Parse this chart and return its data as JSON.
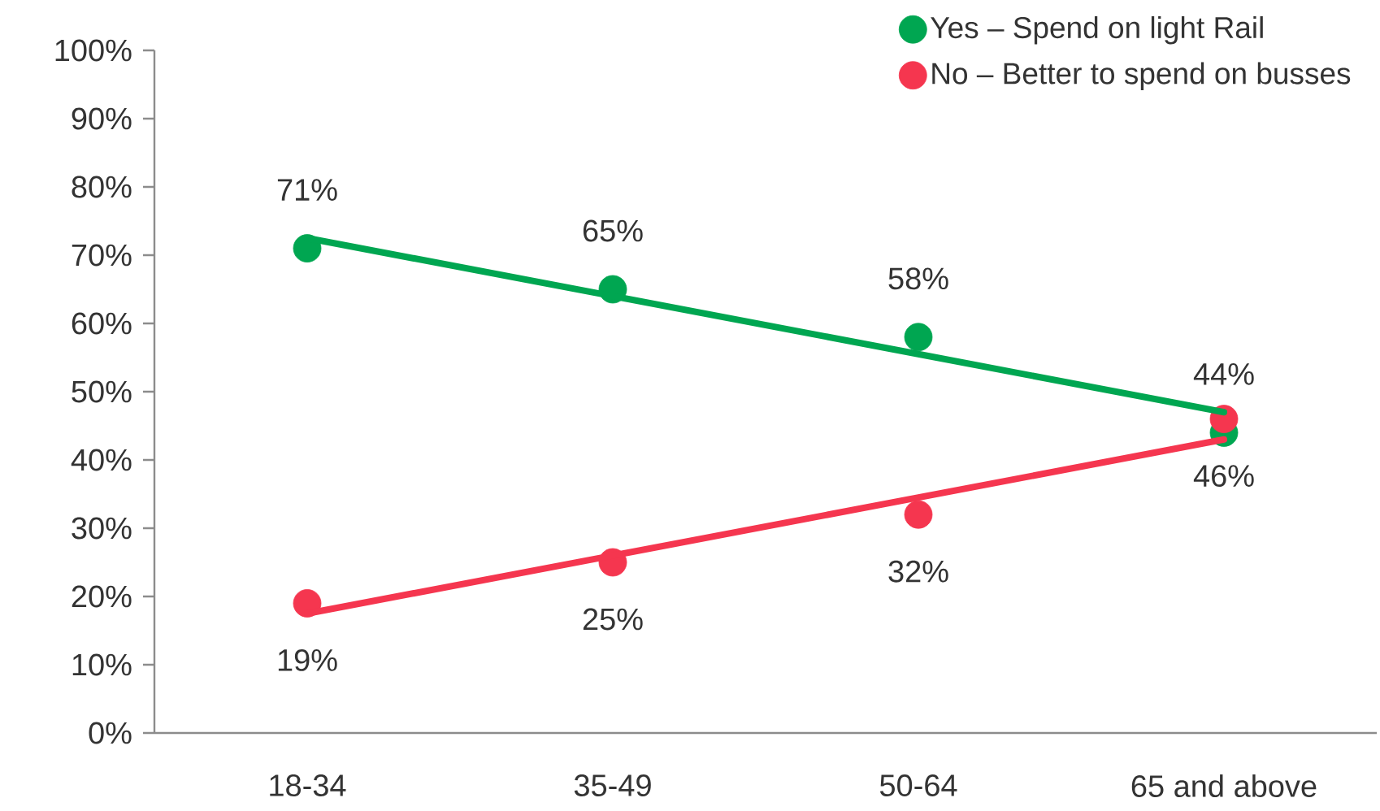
{
  "chart_data": {
    "type": "scatter",
    "categories": [
      "18-34",
      "35-49",
      "50-64",
      "65 and above"
    ],
    "series": [
      {
        "name": "Yes – Spend on light Rail",
        "color": "#00a651",
        "marker": "circle",
        "values": [
          71,
          65,
          58,
          44
        ],
        "value_labels": [
          "71%",
          "65%",
          "58%",
          "44%"
        ]
      },
      {
        "name": "No – Better to spend on busses",
        "color": "#f5364f",
        "marker": "circle",
        "values": [
          19,
          25,
          32,
          46
        ],
        "value_labels": [
          "19%",
          "25%",
          "32%",
          "46%"
        ]
      },
      {
        "type": "line",
        "color": "#00a651",
        "marker": "none",
        "values": [
          72.5,
          64,
          55.5,
          47
        ]
      },
      {
        "type": "line",
        "color": "#f5364f",
        "marker": "none",
        "values": [
          17.5,
          26,
          34.5,
          43
        ]
      }
    ],
    "ylim": [
      0,
      100
    ],
    "yticks": [
      {
        "value": 0,
        "label": "0%"
      },
      {
        "value": 10,
        "label": "10%"
      },
      {
        "value": 20,
        "label": "20%"
      },
      {
        "value": 30,
        "label": "30%"
      },
      {
        "value": 40,
        "label": "40%"
      },
      {
        "value": 50,
        "label": "50%"
      },
      {
        "value": 60,
        "label": "60%"
      },
      {
        "value": 70,
        "label": "70%"
      },
      {
        "value": 80,
        "label": "80%"
      },
      {
        "value": 90,
        "label": "90%"
      },
      {
        "value": 100,
        "label": "100%"
      }
    ],
    "legend": "top right",
    "grid": false
  }
}
